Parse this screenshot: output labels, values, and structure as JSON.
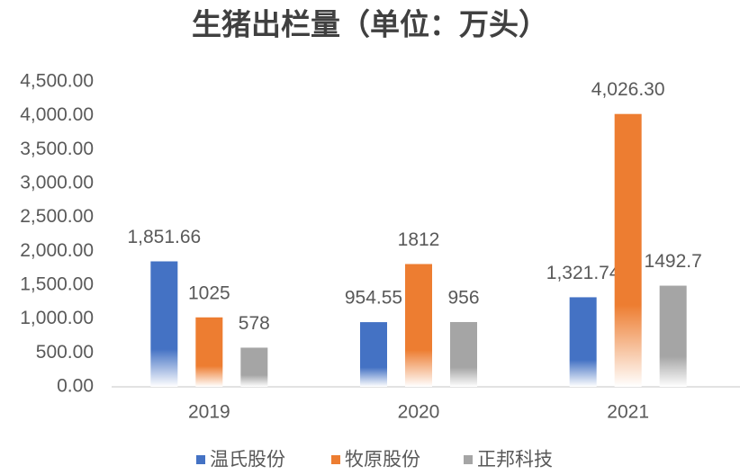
{
  "chart_data": {
    "type": "bar",
    "title": "生猪出栏量（单位：万头）",
    "categories": [
      "2019",
      "2020",
      "2021"
    ],
    "series": [
      {
        "name": "温氏股份",
        "color": "#4472c4",
        "values": [
          1851.66,
          954.55,
          1321.74
        ],
        "value_labels": [
          "1,851.66",
          "954.55",
          "1,321.74"
        ]
      },
      {
        "name": "牧原股份",
        "color": "#ed7d31",
        "values": [
          1025,
          1812,
          4026.3
        ],
        "value_labels": [
          "1025",
          "1812",
          "4,026.30"
        ]
      },
      {
        "name": "正邦科技",
        "color": "#a5a5a5",
        "values": [
          578,
          956,
          1492.7
        ]
      }
    ],
    "ylim": [
      0,
      4500
    ],
    "yticks": [
      {
        "value": 0,
        "label": "0.00"
      },
      {
        "value": 500,
        "label": "500.00"
      },
      {
        "value": 1000,
        "label": "1,000.00"
      },
      {
        "value": 1500,
        "label": "1,500.00"
      },
      {
        "value": 2000,
        "label": "2,000.00"
      },
      {
        "value": 2500,
        "label": "2,500.00"
      },
      {
        "value": 3000,
        "label": "3,000.00"
      },
      {
        "value": 3500,
        "label": "3,500.00"
      },
      {
        "value": 4000,
        "label": "4,000.00"
      },
      {
        "value": 4500,
        "label": "4,500.00"
      }
    ],
    "grid": false,
    "legend": "bottom"
  }
}
